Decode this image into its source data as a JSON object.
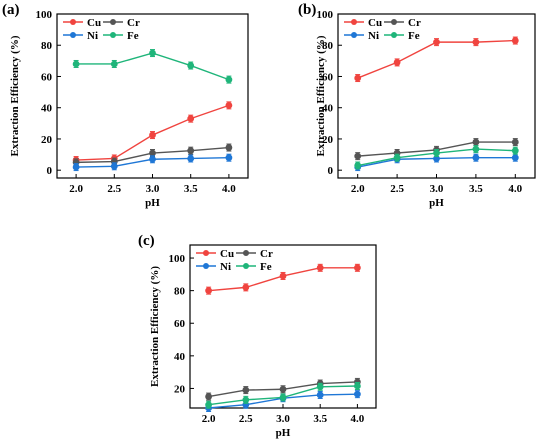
{
  "colors": {
    "Cu": "#f0443f",
    "Cr": "#555555",
    "Ni": "#1f77d6",
    "Fe": "#1fb57a"
  },
  "chart_data": [
    {
      "type": "line",
      "panel_label": "(a)",
      "xlabel": "pH",
      "ylabel": "Extraction Efficiency (%)",
      "ylim": [
        -5,
        100
      ],
      "xticks": [
        "2.0",
        "2.5",
        "3.0",
        "3.5",
        "4.0"
      ],
      "yticks": [
        "0",
        "20",
        "40",
        "60",
        "80",
        "100"
      ],
      "x": [
        2.0,
        2.5,
        3.0,
        3.5,
        4.0
      ],
      "legend_position": "top-left",
      "series": [
        {
          "name": "Cu",
          "values": [
            6.5,
            7.5,
            22.5,
            33,
            41.5
          ]
        },
        {
          "name": "Cr",
          "values": [
            5,
            5.5,
            11,
            12.5,
            14.5
          ]
        },
        {
          "name": "Ni",
          "values": [
            2,
            2.5,
            7,
            7.5,
            8
          ]
        },
        {
          "name": "Fe",
          "values": [
            68,
            68,
            75,
            67,
            58
          ]
        }
      ]
    },
    {
      "type": "line",
      "panel_label": "(b)",
      "xlabel": "pH",
      "ylabel": "Extraction Efficiency (%)",
      "ylim": [
        -5,
        100
      ],
      "xticks": [
        "2.0",
        "2.5",
        "3.0",
        "3.5",
        "4.0"
      ],
      "yticks": [
        "0",
        "20",
        "40",
        "60",
        "80",
        "100"
      ],
      "x": [
        2.0,
        2.5,
        3.0,
        3.5,
        4.0
      ],
      "legend_position": "top-left",
      "series": [
        {
          "name": "Cu",
          "values": [
            59,
            69,
            82,
            82,
            83
          ]
        },
        {
          "name": "Cr",
          "values": [
            9,
            11,
            13,
            18,
            18
          ]
        },
        {
          "name": "Ni",
          "values": [
            2,
            7,
            7.5,
            8,
            8
          ]
        },
        {
          "name": "Fe",
          "values": [
            3,
            8,
            11,
            13.5,
            12.5
          ]
        }
      ]
    },
    {
      "type": "line",
      "panel_label": "(c)",
      "xlabel": "pH",
      "ylabel": "Extraction Efficiency (%)",
      "ylim": [
        8,
        108
      ],
      "xticks": [
        "2.0",
        "2.5",
        "3.0",
        "3.5",
        "4.0"
      ],
      "yticks": [
        "20",
        "40",
        "60",
        "80",
        "100"
      ],
      "x": [
        2.0,
        2.5,
        3.0,
        3.5,
        4.0
      ],
      "legend_position": "top-left",
      "series": [
        {
          "name": "Cu",
          "values": [
            80,
            82,
            89,
            94,
            94
          ]
        },
        {
          "name": "Cr",
          "values": [
            15,
            19,
            19.5,
            23,
            24
          ]
        },
        {
          "name": "Ni",
          "values": [
            8,
            10,
            14,
            16,
            16.5
          ]
        },
        {
          "name": "Fe",
          "values": [
            10,
            13,
            14.5,
            21,
            21.5
          ]
        }
      ]
    }
  ]
}
